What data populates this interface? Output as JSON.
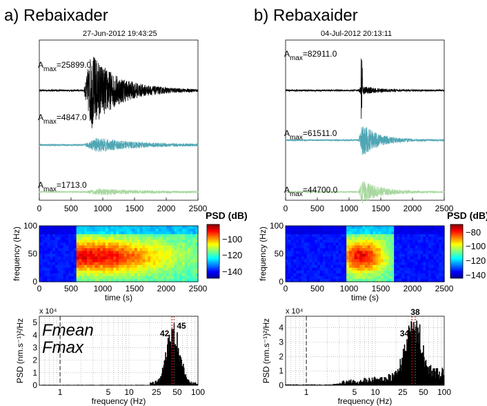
{
  "panels": [
    {
      "title": "a) Rebaixader",
      "timestamp": "27-Jun-2012 19:43:25",
      "traces": [
        {
          "label": "A",
          "sub": "max",
          "value": "=25899.0",
          "color": "#000000"
        },
        {
          "label": "A",
          "sub": "max",
          "value": "=4847.0",
          "color": "#4fa6b4"
        },
        {
          "label": "A",
          "sub": "max",
          "value": "=1713.0",
          "color": "#a8d8a0"
        }
      ],
      "psd_label": "PSD (dB)",
      "freq_mean": "45",
      "freq_max": "42",
      "legend_mean": "Fmean",
      "legend_max": "Fmax"
    },
    {
      "title": "b) Rebaxaider",
      "timestamp": "04-Jul-2012 20:13:11",
      "traces": [
        {
          "label": "A",
          "sub": "max",
          "value": "=82911.0",
          "color": "#000000"
        },
        {
          "label": "A",
          "sub": "max",
          "value": "=61511.0",
          "color": "#4fa6b4"
        },
        {
          "label": "A",
          "sub": "max",
          "value": "=44700.0",
          "color": "#a8d8a0"
        }
      ],
      "psd_label": "PSD (dB)",
      "freq_mean": "38",
      "freq_max": "34"
    }
  ],
  "axes": {
    "time_ticks": [
      "0",
      "500",
      "1000",
      "1500",
      "2000",
      "2500"
    ],
    "time_label": "time (s)",
    "freq_label": "frequency (Hz)",
    "freq_ticks": [
      "0",
      "50",
      "100"
    ],
    "psd_ylabel": "PSD (nm.s⁻¹)²/Hz",
    "psd_exponent": "x 10⁴",
    "logf_ticks": [
      "1",
      "5",
      "10",
      "25",
      "50",
      "100"
    ],
    "colorbar_ticks_a": [
      "−100",
      "−120",
      "−140"
    ],
    "colorbar_ticks_b": [
      "−80",
      "−100",
      "−120",
      "−140"
    ],
    "psd_yticks_a": [
      "0",
      "1",
      "2",
      "3",
      "4",
      "5"
    ],
    "psd_yticks_b": [
      "0",
      "1",
      "2",
      "3",
      "4"
    ]
  },
  "chart_data": [
    {
      "type": "line",
      "title": "a) Rebaixader",
      "subtitle": "27-Jun-2012 19:43:25",
      "xlabel": "",
      "xlim": [
        0,
        2500
      ],
      "series": [
        {
          "name": "A max=25899.0",
          "envelope_peak_time": 800,
          "duration": [
            650,
            2500
          ]
        },
        {
          "name": "A max=4847.0",
          "envelope_peak_time": 900
        },
        {
          "name": "A max=1713.0",
          "envelope_peak_time": 900
        }
      ]
    },
    {
      "type": "line",
      "title": "b) Rebaxaider",
      "subtitle": "04-Jul-2012 20:13:11",
      "xlim": [
        0,
        2500
      ],
      "series": [
        {
          "name": "A max=82911.0",
          "envelope_peak_time": 1200
        },
        {
          "name": "A max=61511.0",
          "envelope_peak_time": 1200
        },
        {
          "name": "A max=44700.0",
          "envelope_peak_time": 1200
        }
      ]
    },
    {
      "type": "heatmap",
      "xlabel": "time (s)",
      "ylabel": "frequency (Hz)",
      "xlim": [
        0,
        2500
      ],
      "ylim": [
        0,
        100
      ],
      "colorbar_label": "PSD (dB)",
      "colorbar_range": [
        -150,
        -90
      ],
      "energy_window": [
        600,
        2500
      ],
      "energy_peak_time": 800,
      "energy_peak_freq": 45
    },
    {
      "type": "heatmap",
      "xlabel": "time (s)",
      "ylabel": "frequency (Hz)",
      "xlim": [
        0,
        2500
      ],
      "ylim": [
        0,
        100
      ],
      "colorbar_label": "PSD (dB)",
      "colorbar_range": [
        -145,
        -75
      ],
      "energy_window": [
        950,
        1700
      ],
      "energy_peak_time": 1200,
      "energy_peak_freq": 45
    },
    {
      "type": "bar",
      "xlabel": "frequency (Hz)",
      "ylabel": "PSD (nm.s⁻¹)²/Hz",
      "ylim": [
        0,
        55000
      ],
      "x_scale": "log",
      "xlim": [
        0.5,
        100
      ],
      "fmean": 45,
      "fmax": 42,
      "peak_psd": 52000
    },
    {
      "type": "bar",
      "xlabel": "frequency (Hz)",
      "ylabel": "PSD (nm.s⁻¹)²/Hz",
      "ylim": [
        0,
        48000
      ],
      "x_scale": "log",
      "xlim": [
        0.5,
        100
      ],
      "fmean": 38,
      "fmax": 34,
      "peak_psd": 46000
    }
  ]
}
